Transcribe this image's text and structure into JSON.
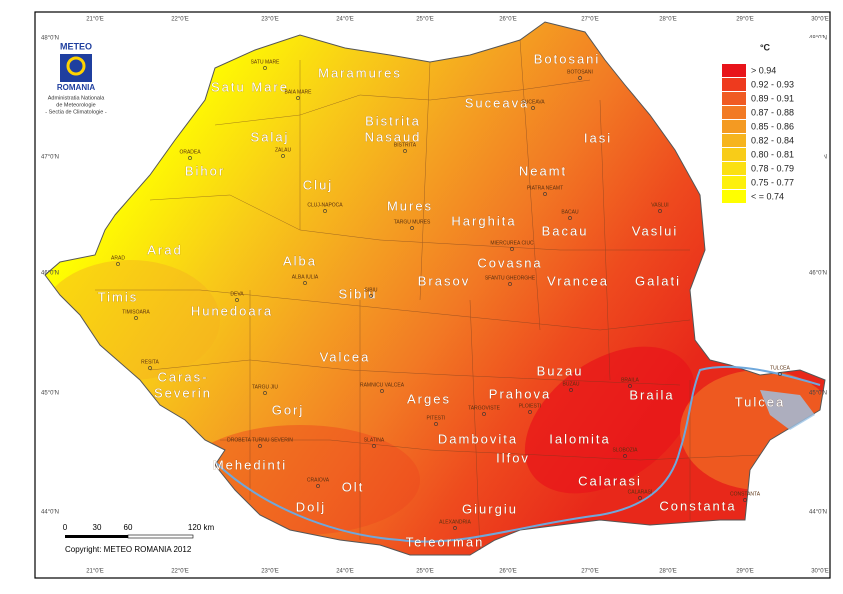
{
  "header": {
    "logo_title": "METEO",
    "logo_subtitle": "ROMANIA",
    "agency": [
      "Administratia Nationala",
      "de Meteorologie",
      "- Sectia de Climatologie -"
    ]
  },
  "legend": {
    "unit": "°C",
    "items": [
      {
        "label": "> 0.94",
        "color": "#e8141a"
      },
      {
        "label": "0.92 - 0.93",
        "color": "#ee3a1e"
      },
      {
        "label": "0.89 - 0.91",
        "color": "#f05a22"
      },
      {
        "label": "0.87 - 0.88",
        "color": "#f27a24"
      },
      {
        "label": "0.85 - 0.86",
        "color": "#f49a22"
      },
      {
        "label": "0.82 - 0.84",
        "color": "#f6b41e"
      },
      {
        "label": "0.80 - 0.81",
        "color": "#f8cc18"
      },
      {
        "label": "0.78 - 0.79",
        "color": "#fbe012"
      },
      {
        "label": "0.75 - 0.77",
        "color": "#fdf00c"
      },
      {
        "label": "< = 0.74",
        "color": "#ffff00"
      }
    ]
  },
  "regions": [
    "Satu Mare",
    "Maramures",
    "Botosani",
    "Suceava",
    "Salaj",
    "Bistrita",
    "Nasaud",
    "Iasi",
    "Bihor",
    "Cluj",
    "Neamt",
    "Mures",
    "Harghita",
    "Bacau",
    "Vaslui",
    "Arad",
    "Alba",
    "Timis",
    "Hunedoara",
    "Sibiu",
    "Brasov",
    "Covasna",
    "Vrancea",
    "Galati",
    "Caras-",
    "Severin",
    "Valcea",
    "Buzau",
    "Prahova",
    "Braila",
    "Tulcea",
    "Gorj",
    "Arges",
    "Dambovita",
    "Ialomita",
    "Mehedinti",
    "Ilfov",
    "Olt",
    "Calarasi",
    "Dolj",
    "Giurgiu",
    "Constanta",
    "Teleorman"
  ],
  "cities": [
    "SATU MARE",
    "BAIA MARE",
    "ORADEA",
    "ZALAU",
    "BISTRITA",
    "BOTOSANI",
    "SUCEAVA",
    "CLUJ-NAPOCA",
    "TARGU MURES",
    "PIATRA NEAMT",
    "BACAU",
    "VASLUI",
    "MIERCUREA CIUC",
    "ARAD",
    "ALBA IULIA",
    "DEVA",
    "TIMISOARA",
    "SIBIU",
    "SFANTU GHEORGHE",
    "RESITA",
    "TARGU JIU",
    "RAMNICU VALCEA",
    "PITESTI",
    "TARGOVISTE",
    "PLOIESTI",
    "BUZAU",
    "BRAILA",
    "TULCEA",
    "DROBETA TURNU SEVERIN",
    "SLATINA",
    "CRAIOVA",
    "SLOBOZIA",
    "CALARASI",
    "ALEXANDRIA",
    "CONSTANTA"
  ],
  "scale_bar": {
    "ticks": [
      "0",
      "30",
      "60",
      "120 km"
    ]
  },
  "copyright": "Copyright: METEO ROMANIA 2012",
  "graticule": {
    "longitudes": [
      "21°0'E",
      "22°0'E",
      "23°0'E",
      "24°0'E",
      "25°0'E",
      "26°0'E",
      "27°0'E",
      "28°0'E",
      "29°0'E",
      "30°0'E"
    ],
    "latitudes": [
      "48°0'N",
      "47°0'N",
      "46°0'N",
      "45°0'N",
      "44°0'N"
    ]
  }
}
